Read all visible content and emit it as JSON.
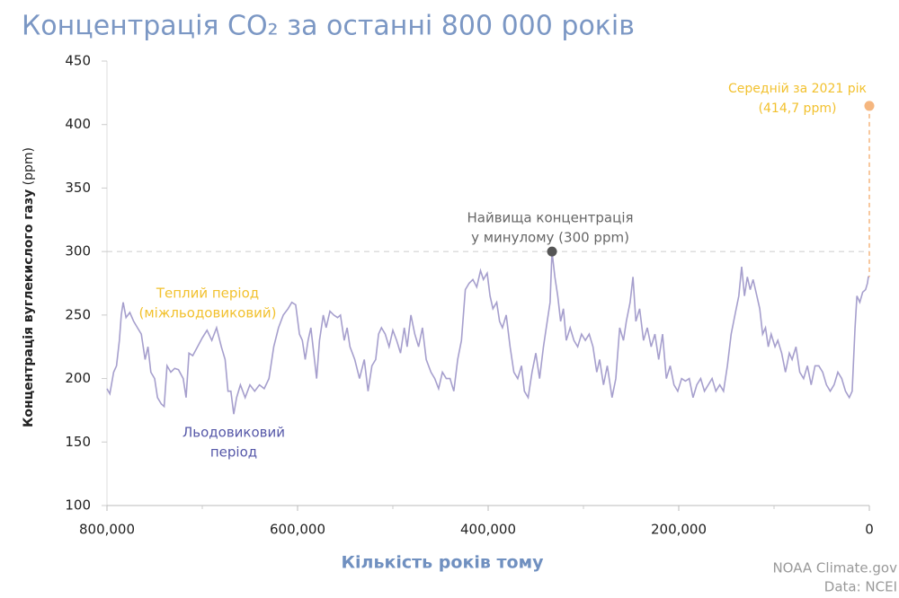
{
  "chart_data": {
    "type": "line",
    "title": "Концентрація CO₂  за останні 800 000 років",
    "ylabel": "Концентрація вуглекислого газу",
    "ylabel_unit": "(ppm)",
    "xlabel": "Кількість років тому",
    "source": [
      "NOAA Climate.gov",
      "Data: NCEI"
    ],
    "color": "#a69fcd",
    "xlim": [
      800000,
      0
    ],
    "ylim": [
      100,
      450
    ],
    "xticks": [
      {
        "value": 800000,
        "label": "800,000"
      },
      {
        "value": 600000,
        "label": "600,000"
      },
      {
        "value": 400000,
        "label": "400,000"
      },
      {
        "value": 200000,
        "label": "200,000"
      },
      0
    ],
    "yticks": [
      100,
      150,
      200,
      250,
      300,
      350,
      400,
      450
    ],
    "reference_line": 300,
    "x": [
      800000,
      797000,
      793000,
      790000,
      787000,
      785000,
      783000,
      780000,
      776000,
      772000,
      768000,
      764000,
      760000,
      757000,
      754000,
      750000,
      747000,
      743000,
      740000,
      737000,
      733000,
      729000,
      725000,
      720000,
      717000,
      714000,
      710000,
      705000,
      700000,
      695000,
      690000,
      685000,
      680000,
      676000,
      673000,
      670000,
      667000,
      664000,
      660000,
      655000,
      650000,
      645000,
      640000,
      635000,
      630000,
      625000,
      620000,
      615000,
      610000,
      606000,
      602000,
      598000,
      595000,
      592000,
      589000,
      586000,
      583000,
      580000,
      577000,
      573000,
      570000,
      566000,
      562000,
      558000,
      555000,
      551000,
      548000,
      545000,
      540000,
      535000,
      530000,
      526000,
      522000,
      518000,
      515000,
      512000,
      508000,
      504000,
      500000,
      496000,
      492000,
      488000,
      485000,
      481000,
      477000,
      473000,
      469000,
      465000,
      460000,
      456000,
      452000,
      448000,
      444000,
      440000,
      436000,
      432000,
      428000,
      424000,
      420000,
      416000,
      412000,
      408000,
      405000,
      401000,
      398000,
      395000,
      391000,
      388000,
      385000,
      381000,
      377000,
      373000,
      369000,
      365000,
      362000,
      358000,
      354000,
      350000,
      346000,
      342000,
      338000,
      335000,
      333000,
      330000,
      327000,
      324000,
      321000,
      318000,
      314000,
      310000,
      306000,
      302000,
      298000,
      294000,
      290000,
      286000,
      283000,
      279000,
      275000,
      270000,
      266000,
      262000,
      258000,
      255000,
      251000,
      248000,
      245000,
      241000,
      237000,
      233000,
      229000,
      225000,
      221000,
      217000,
      213000,
      209000,
      205000,
      201000,
      197000,
      193000,
      189000,
      185000,
      181000,
      177000,
      173000,
      169000,
      165000,
      161000,
      157000,
      153000,
      149000,
      145000,
      141000,
      137000,
      134000,
      131000,
      128000,
      125000,
      122000,
      118000,
      115000,
      112000,
      109000,
      106000,
      103000,
      99000,
      96000,
      92000,
      88000,
      84000,
      81000,
      77000,
      73000,
      69000,
      65000,
      61000,
      57000,
      53000,
      49000,
      45000,
      41000,
      37000,
      33000,
      29000,
      25000,
      21000,
      18000,
      15000,
      13000,
      10000,
      7000,
      4000,
      2000,
      1000,
      0
    ],
    "values": [
      192,
      188,
      205,
      210,
      230,
      250,
      260,
      248,
      252,
      245,
      240,
      235,
      215,
      225,
      205,
      200,
      185,
      180,
      178,
      210,
      205,
      208,
      207,
      200,
      185,
      220,
      218,
      225,
      232,
      238,
      230,
      240,
      225,
      215,
      190,
      190,
      172,
      185,
      195,
      185,
      195,
      190,
      195,
      192,
      200,
      225,
      240,
      250,
      255,
      260,
      258,
      235,
      230,
      215,
      230,
      240,
      220,
      200,
      230,
      250,
      240,
      253,
      250,
      248,
      250,
      230,
      240,
      225,
      215,
      200,
      215,
      190,
      210,
      215,
      235,
      240,
      235,
      225,
      238,
      230,
      220,
      240,
      225,
      250,
      235,
      225,
      240,
      215,
      205,
      200,
      192,
      205,
      200,
      200,
      190,
      215,
      230,
      270,
      275,
      278,
      272,
      285,
      278,
      283,
      265,
      255,
      260,
      245,
      240,
      250,
      225,
      205,
      200,
      210,
      190,
      185,
      205,
      220,
      200,
      225,
      245,
      260,
      300,
      280,
      265,
      245,
      255,
      230,
      240,
      230,
      225,
      235,
      230,
      235,
      225,
      205,
      215,
      195,
      210,
      185,
      200,
      240,
      230,
      245,
      260,
      280,
      245,
      255,
      230,
      240,
      225,
      235,
      215,
      235,
      200,
      210,
      195,
      190,
      200,
      198,
      200,
      185,
      195,
      200,
      190,
      195,
      200,
      190,
      195,
      190,
      210,
      235,
      250,
      265,
      288,
      265,
      280,
      270,
      278,
      265,
      255,
      235,
      240,
      225,
      235,
      225,
      230,
      220,
      205,
      220,
      215,
      225,
      205,
      200,
      210,
      195,
      210,
      210,
      205,
      195,
      190,
      195,
      205,
      200,
      190,
      185,
      190,
      240,
      265,
      260,
      268,
      270,
      275,
      280,
      280
    ],
    "peak": {
      "text": [
        "Найвища концентрація",
        "у минулому (300 ppm)"
      ],
      "x": 333000,
      "y": 300,
      "color": "#555555"
    },
    "current": {
      "text": [
        "Середній за 2021 рік",
        "(414,7 ppm)"
      ],
      "x": 0,
      "y": 414.7,
      "color": "#f5b67f",
      "text_color": "#f2c12e"
    },
    "warm_label": {
      "text": [
        "Теплий період",
        "(міжльодовиковий)"
      ],
      "color": "#f2c12e"
    },
    "ice_label": {
      "text": [
        "Льодовиковий",
        "період"
      ],
      "color": "#5557a8"
    }
  }
}
